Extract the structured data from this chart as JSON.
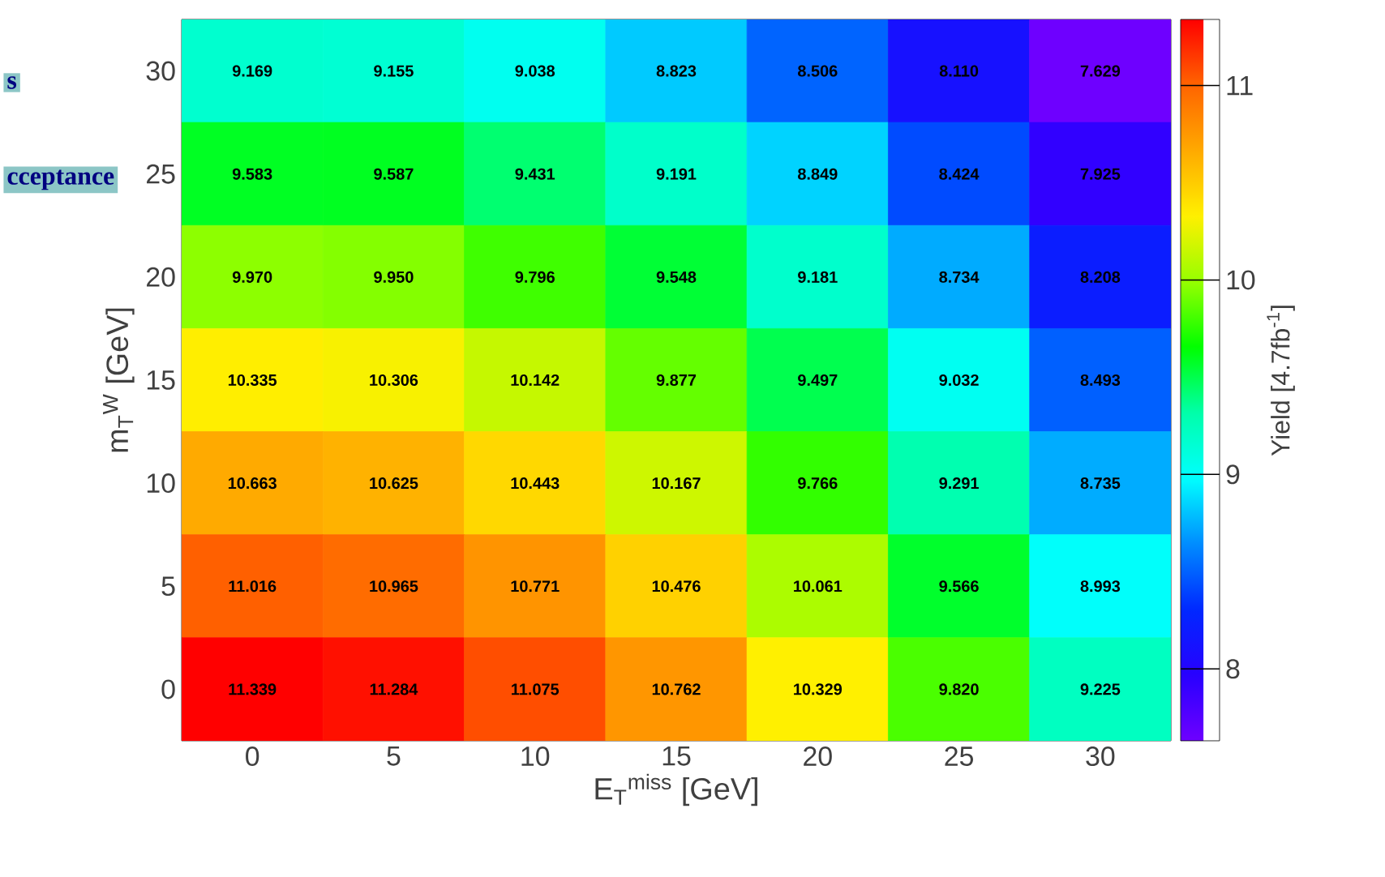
{
  "chart_data": {
    "type": "heatmap",
    "xlabel": "E$_{T}$$^{miss}$ [GeV]",
    "ylabel": "m$_{T}$$^{W}$ [GeV]",
    "clabel": "Yield [4.7fb$^{-1}$]",
    "categories": [
      "0",
      "5",
      "10",
      "15",
      "20",
      "25",
      "30"
    ],
    "y_categories": [
      "30",
      "25",
      "20",
      "15",
      "10",
      "5",
      "0"
    ],
    "cells": [
      [
        9.169,
        9.155,
        9.038,
        8.823,
        8.506,
        8.11,
        7.629
      ],
      [
        9.583,
        9.587,
        9.431,
        9.191,
        8.849,
        8.424,
        7.925
      ],
      [
        9.97,
        9.95,
        9.796,
        9.548,
        9.181,
        8.734,
        8.208
      ],
      [
        10.335,
        10.306,
        10.142,
        9.877,
        9.497,
        9.032,
        8.493
      ],
      [
        10.663,
        10.625,
        10.443,
        10.167,
        9.766,
        9.291,
        8.735
      ],
      [
        11.016,
        10.965,
        10.771,
        10.476,
        10.061,
        9.566,
        8.993
      ],
      [
        11.339,
        11.284,
        11.075,
        10.762,
        10.329,
        9.82,
        9.225
      ]
    ],
    "cell_labels": [
      [
        "9.169",
        "9.155",
        "9.038",
        "8.823",
        "8.506",
        "8.110",
        "7.629"
      ],
      [
        "9.583",
        "9.587",
        "9.431",
        "9.191",
        "8.849",
        "8.424",
        "7.925"
      ],
      [
        "9.970",
        "9.950",
        "9.796",
        "9.548",
        "9.181",
        "8.734",
        "8.208"
      ],
      [
        "10.335",
        "10.306",
        "10.142",
        "9.877",
        "9.497",
        "9.032",
        "8.493"
      ],
      [
        "10.663",
        "10.625",
        "10.443",
        "10.167",
        "9.766",
        "9.291",
        "8.735"
      ],
      [
        "11.016",
        "10.965",
        "10.771",
        "10.476",
        "10.061",
        "9.566",
        "8.993"
      ],
      [
        "11.339",
        "11.284",
        "11.075",
        "10.762",
        "10.329",
        "9.820",
        "9.225"
      ]
    ],
    "clim": [
      7.63,
      11.34
    ],
    "cticks": [
      8,
      9,
      10,
      11
    ],
    "annotations": [
      "s",
      "cceptance"
    ]
  }
}
